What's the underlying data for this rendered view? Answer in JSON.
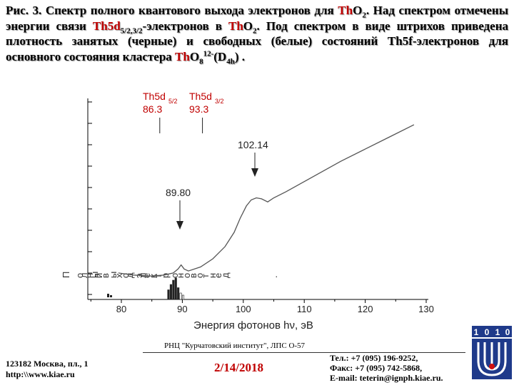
{
  "caption": {
    "p1": "Рис. 3. Спектр полного квантового выхода электронов для ",
    "th1": "Th",
    "o1": "O",
    "s1": "2",
    "p2": ". Над спектром отмечены энергии связи ",
    "th2": "Th5d",
    "s2": "5/2,3/2",
    "p3": "-электронов в ",
    "th3": "Th",
    "o3": "O",
    "s3": "2",
    "p4": ". Под спектром в виде штрихов приведена плотность занятых (черные) и свободных (белые) состояний Th5f-электронов для основного состояния кластера ",
    "th4": "Th",
    "o4": "O",
    "s4": "8",
    "sup4": "12-",
    "p5": "(D",
    "s5": "4h",
    "p6": ") ."
  },
  "chart_data": {
    "type": "line",
    "xlabel": "Энергия фотонов hν, эВ",
    "x_ticks": [
      80,
      90,
      100,
      110,
      120,
      130
    ],
    "xlim": [
      78,
      131
    ],
    "ylabel_fragments": [
      "П",
      "о",
      "л",
      "н",
      "ы",
      "й",
      "в",
      "ы",
      "х",
      "о",
      "д",
      "э",
      "л",
      "е",
      "к",
      "т",
      "р",
      "о",
      "н",
      "о",
      "в",
      "о",
      "т",
      "н",
      "е",
      "д",
      "."
    ],
    "series": [
      {
        "x": [
          79.5,
          82,
          85,
          87,
          88.5,
          89.3,
          89.8,
          90.3,
          91,
          93,
          95,
          97,
          98.5,
          99.5,
          100.5,
          101.3,
          102.14,
          103,
          104,
          105,
          107,
          110,
          113,
          116,
          120,
          124,
          128
        ],
        "y": [
          0.13,
          0.12,
          0.115,
          0.12,
          0.13,
          0.15,
          0.17,
          0.15,
          0.14,
          0.16,
          0.2,
          0.26,
          0.33,
          0.4,
          0.46,
          0.49,
          0.5,
          0.495,
          0.48,
          0.5,
          0.53,
          0.58,
          0.63,
          0.68,
          0.74,
          0.8,
          0.86
        ]
      }
    ],
    "annotations": [
      {
        "label": "Th5d5/2",
        "value": "86.3",
        "x": 86.3
      },
      {
        "label": "Th5d3/2",
        "value": "93.3",
        "x": 93.3
      },
      {
        "label": "102.14",
        "x": 102.14
      },
      {
        "label": "89.80",
        "x": 89.8
      }
    ],
    "dos_bars": [
      {
        "x": 87.7,
        "h": 0.45,
        "type": "occupied"
      },
      {
        "x": 88.1,
        "h": 0.7,
        "type": "occupied"
      },
      {
        "x": 88.5,
        "h": 0.9,
        "type": "occupied"
      },
      {
        "x": 88.9,
        "h": 1.0,
        "type": "occupied"
      },
      {
        "x": 89.3,
        "h": 0.55,
        "type": "occupied"
      },
      {
        "x": 89.7,
        "h": 0.3,
        "type": "unoccupied"
      },
      {
        "x": 90.1,
        "h": 0.2,
        "type": "unoccupied"
      }
    ],
    "colors": {
      "series": "#555555",
      "annotation": "#c00000",
      "axis": "#000000"
    }
  },
  "footer": {
    "institute": "РНЦ \"Курчатовский институт\",   ЛПС О-57",
    "address_line1": "123182 Москва, пл., 1",
    "address_line2": "http:\\\\www.kiae.ru",
    "date": "2/14/2018",
    "phone": "Тел.:    +7 (095) 196-9252,",
    "fax": "Факс:  +7 (095) 742-5868,",
    "email": "E-mail: teterin@ignph.kiae.ru.",
    "logo_digits": [
      "1",
      "0",
      "1",
      "0"
    ]
  }
}
